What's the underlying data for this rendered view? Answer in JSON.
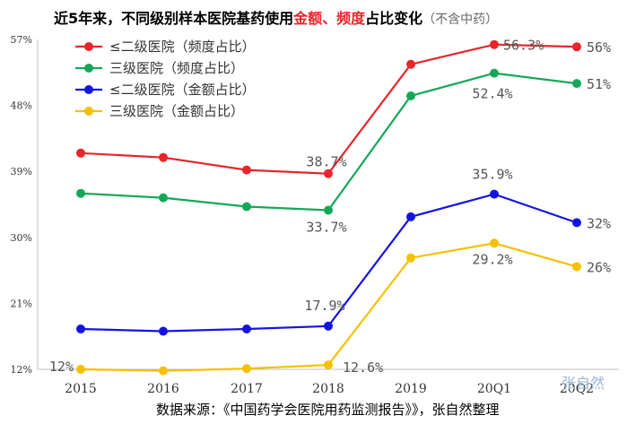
{
  "title": {
    "part1": "近5年来，不同级别样本医院基药使用",
    "part2": "金额、频度",
    "part3": "占比变化",
    "note": "（不含中药）"
  },
  "source": "数据来源：《中国药学会医院用药监测报告》》，张自然整理",
  "watermark": "张自然",
  "chart_data": {
    "type": "line",
    "categories": [
      "2015",
      "2016",
      "2017",
      "2018",
      "2019",
      "20Q1",
      "20Q2"
    ],
    "y_ticks": [
      "57%",
      "48%",
      "39%",
      "30%",
      "21%",
      "12%"
    ],
    "ylim": [
      12,
      57
    ],
    "grid": false,
    "legend_position": "top-left",
    "series": [
      {
        "name": "≤二级医院（频度占比）",
        "color": "#e8252a",
        "values": [
          41.5,
          40.9,
          39.2,
          38.7,
          53.6,
          56.3,
          56.0
        ]
      },
      {
        "name": "三级医院（频度占比）",
        "color": "#13a858",
        "values": [
          36.0,
          35.4,
          34.2,
          33.7,
          49.3,
          52.4,
          51.0
        ]
      },
      {
        "name": "≤二级医院（金额占比）",
        "color": "#1414e0",
        "values": [
          17.5,
          17.2,
          17.5,
          17.9,
          32.8,
          35.9,
          32.0
        ]
      },
      {
        "name": "三级医院（金额占比）",
        "color": "#f5c000",
        "values": [
          12.0,
          11.8,
          12.1,
          12.6,
          27.2,
          29.2,
          26.0
        ]
      }
    ],
    "annotations": [
      {
        "series": 0,
        "index": 3,
        "text": "38.7%"
      },
      {
        "series": 0,
        "index": 5,
        "text": "56.3%"
      },
      {
        "series": 0,
        "index": 6,
        "text": "56%"
      },
      {
        "series": 1,
        "index": 3,
        "text": "33.7%"
      },
      {
        "series": 1,
        "index": 5,
        "text": "52.4%"
      },
      {
        "series": 1,
        "index": 6,
        "text": "51%"
      },
      {
        "series": 2,
        "index": 3,
        "text": "17.9%"
      },
      {
        "series": 2,
        "index": 5,
        "text": "35.9%"
      },
      {
        "series": 2,
        "index": 6,
        "text": "32%"
      },
      {
        "series": 3,
        "index": 0,
        "text": "12%"
      },
      {
        "series": 3,
        "index": 3,
        "text": "12.6%"
      },
      {
        "series": 3,
        "index": 5,
        "text": "29.2%"
      },
      {
        "series": 3,
        "index": 6,
        "text": "26%"
      }
    ]
  }
}
